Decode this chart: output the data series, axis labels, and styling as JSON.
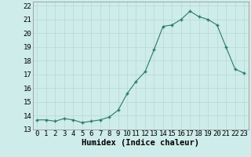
{
  "x": [
    0,
    1,
    2,
    3,
    4,
    5,
    6,
    7,
    8,
    9,
    10,
    11,
    12,
    13,
    14,
    15,
    16,
    17,
    18,
    19,
    20,
    21,
    22,
    23
  ],
  "y": [
    13.7,
    13.7,
    13.6,
    13.8,
    13.7,
    13.5,
    13.6,
    13.7,
    13.9,
    14.4,
    15.6,
    16.5,
    17.2,
    18.8,
    20.5,
    20.6,
    21.0,
    21.6,
    21.2,
    21.0,
    20.6,
    19.0,
    17.4,
    17.1
  ],
  "xlabel": "Humidex (Indice chaleur)",
  "xlim": [
    -0.5,
    23.5
  ],
  "ylim": [
    13,
    22.3
  ],
  "yticks": [
    13,
    14,
    15,
    16,
    17,
    18,
    19,
    20,
    21,
    22
  ],
  "xtick_labels": [
    "0",
    "1",
    "2",
    "3",
    "4",
    "5",
    "6",
    "7",
    "8",
    "9",
    "10",
    "11",
    "12",
    "13",
    "14",
    "15",
    "16",
    "17",
    "18",
    "19",
    "20",
    "21",
    "22",
    "23"
  ],
  "line_color": "#2a7a6a",
  "marker": "+",
  "bg_color": "#ceecea",
  "grid_color_major": "#b8d8d4",
  "grid_color_minor": "#d4ecea",
  "xlabel_fontsize": 7.5,
  "tick_fontsize": 6.5
}
